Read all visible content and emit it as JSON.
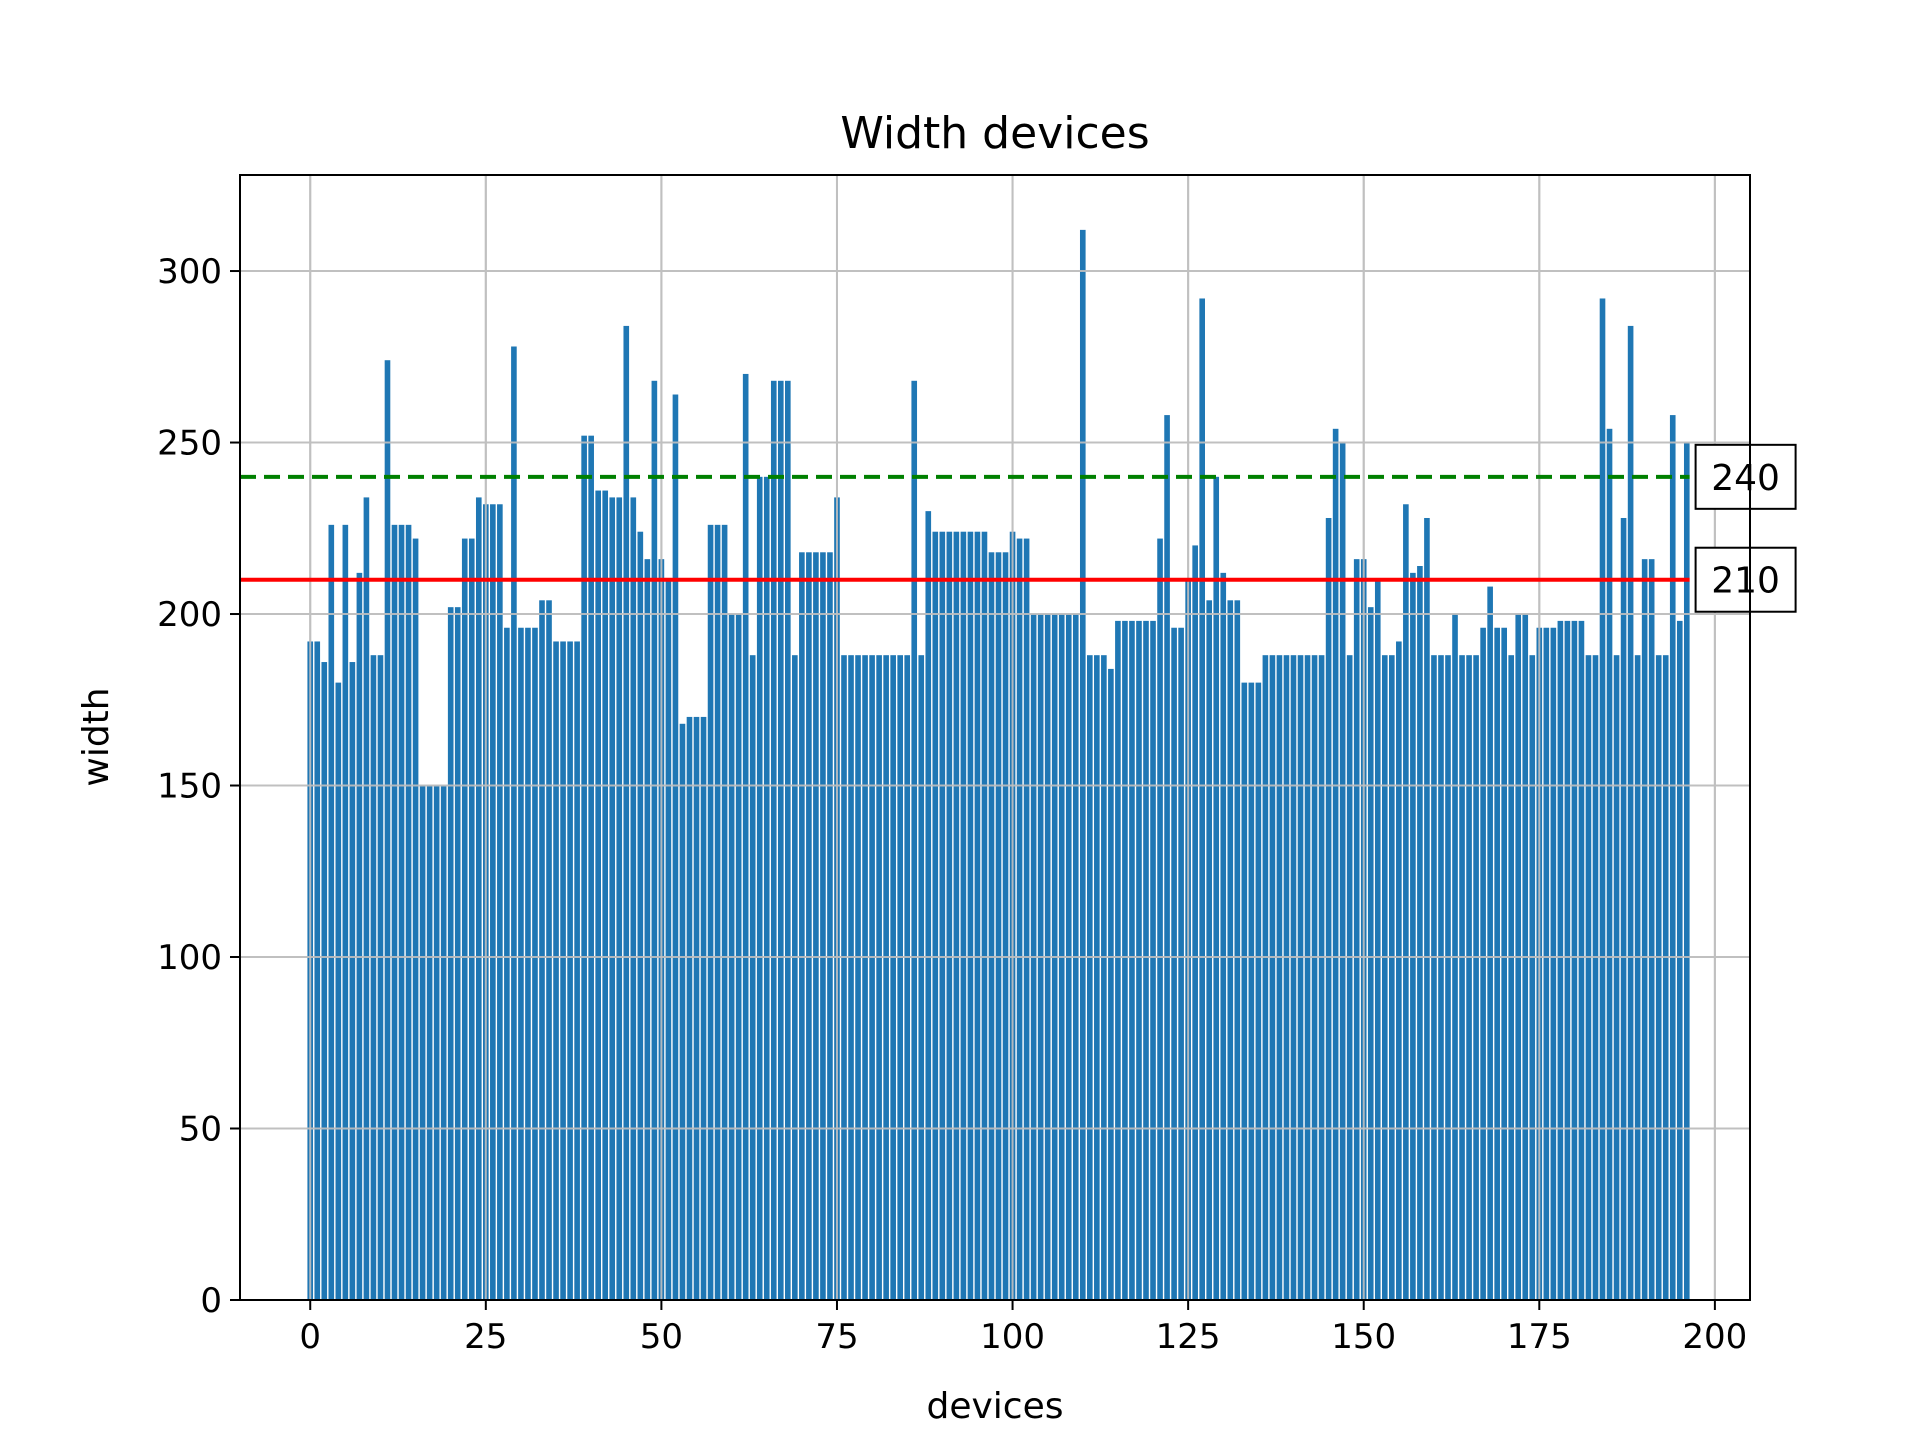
{
  "chart_data": {
    "type": "bar",
    "title": "Width devices",
    "xlabel": "devices",
    "ylabel": "width",
    "xlim": [
      -10,
      205
    ],
    "ylim": [
      0,
      328
    ],
    "xticks": [
      0,
      25,
      50,
      75,
      100,
      125,
      150,
      175,
      200
    ],
    "yticks": [
      0,
      50,
      100,
      150,
      200,
      250,
      300
    ],
    "grid": true,
    "bar_color": "#1f77b4",
    "values": [
      192,
      192,
      186,
      226,
      180,
      226,
      186,
      212,
      234,
      188,
      188,
      274,
      226,
      226,
      226,
      222,
      150,
      150,
      150,
      150,
      202,
      202,
      222,
      222,
      234,
      232,
      232,
      232,
      196,
      278,
      196,
      196,
      196,
      204,
      204,
      192,
      192,
      192,
      192,
      252,
      252,
      236,
      236,
      234,
      234,
      284,
      234,
      224,
      216,
      268,
      216,
      210,
      264,
      168,
      170,
      170,
      170,
      226,
      226,
      226,
      200,
      200,
      270,
      188,
      240,
      240,
      268,
      268,
      268,
      188,
      218,
      218,
      218,
      218,
      218,
      234,
      188,
      188,
      188,
      188,
      188,
      188,
      188,
      188,
      188,
      188,
      268,
      188,
      230,
      224,
      224,
      224,
      224,
      224,
      224,
      224,
      224,
      218,
      218,
      218,
      224,
      222,
      222,
      200,
      200,
      200,
      200,
      200,
      200,
      200,
      312,
      188,
      188,
      188,
      184,
      198,
      198,
      198,
      198,
      198,
      198,
      222,
      258,
      196,
      196,
      210,
      220,
      292,
      204,
      240,
      212,
      204,
      204,
      180,
      180,
      180,
      188,
      188,
      188,
      188,
      188,
      188,
      188,
      188,
      188,
      228,
      254,
      250,
      188,
      216,
      216,
      202,
      210,
      188,
      188,
      192,
      232,
      212,
      214,
      228,
      188,
      188,
      188,
      200,
      188,
      188,
      188,
      196,
      208,
      196,
      196,
      188,
      200,
      200,
      188,
      196,
      196,
      196,
      198,
      198,
      198,
      198,
      188,
      188,
      292,
      254,
      188,
      228,
      284,
      188,
      216,
      216,
      188,
      188,
      258,
      198,
      250
    ],
    "reference_lines": [
      {
        "value": 240,
        "label": "240",
        "color": "#008000",
        "style": "dashed"
      },
      {
        "value": 210,
        "label": "210",
        "color": "#ff0000",
        "style": "solid"
      }
    ]
  }
}
